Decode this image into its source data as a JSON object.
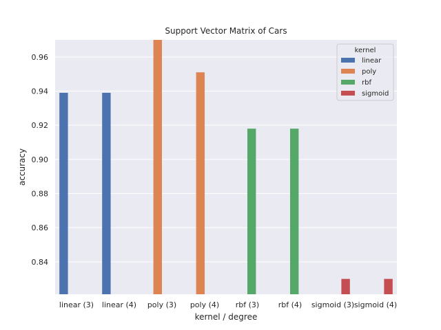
{
  "chart_data": {
    "type": "bar",
    "title": "Support Vector Matrix of Cars",
    "xlabel": "kernel / degree",
    "ylabel": "accuracy",
    "ylim": [
      0.821,
      0.97
    ],
    "yticks": [
      "0.84",
      "0.86",
      "0.88",
      "0.90",
      "0.92",
      "0.94",
      "0.96"
    ],
    "grid": true,
    "categories": [
      "linear (3)",
      "linear (4)",
      "poly (3)",
      "poly (4)",
      "rbf (3)",
      "rbf (4)",
      "sigmoid (3)",
      "sigmoid (4)"
    ],
    "legend": {
      "title": "kernel",
      "placement": "top-right",
      "entries": [
        {
          "name": "linear",
          "color": "#4c72b0"
        },
        {
          "name": "poly",
          "color": "#dd8452"
        },
        {
          "name": "rbf",
          "color": "#55a868"
        },
        {
          "name": "sigmoid",
          "color": "#c44e52"
        }
      ]
    },
    "series": [
      {
        "name": "linear",
        "color": "#4c72b0",
        "values": [
          0.939,
          0.939,
          null,
          null,
          null,
          null,
          null,
          null
        ]
      },
      {
        "name": "poly",
        "color": "#dd8452",
        "values": [
          null,
          null,
          0.97,
          0.951,
          null,
          null,
          null,
          null
        ]
      },
      {
        "name": "rbf",
        "color": "#55a868",
        "values": [
          null,
          null,
          null,
          null,
          0.918,
          0.918,
          null,
          null
        ]
      },
      {
        "name": "sigmoid",
        "color": "#c44e52",
        "values": [
          null,
          null,
          null,
          null,
          null,
          null,
          0.83,
          0.83
        ]
      }
    ]
  }
}
